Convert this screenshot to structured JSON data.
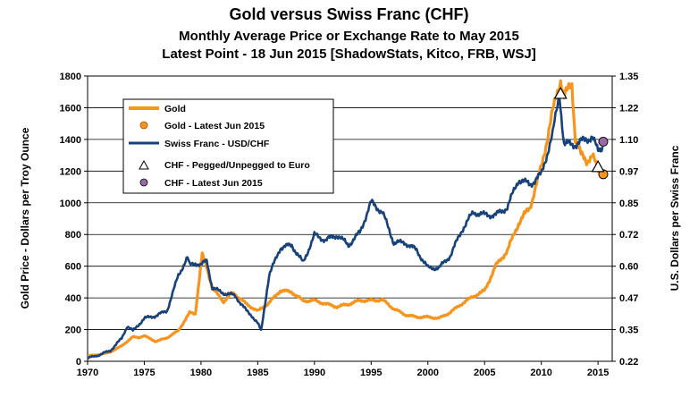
{
  "chart_data": {
    "type": "line",
    "title": "Gold versus Swiss Franc (CHF)",
    "subtitle": "Monthly Average Price or Exchange Rate to May 2015",
    "subtitle2": "Latest Point - 18 Jun 2015 [ShadowStats, Kitco, FRB, WSJ]",
    "xlabel": "",
    "ylabel_left": "Gold Price - Dollars per Troy Ounce",
    "ylabel_right": "U.S. Dollars per Swiss Franc",
    "xlim": [
      1970,
      2016.25
    ],
    "ylim_left": [
      0,
      1800
    ],
    "ylim_right": [
      0.22,
      1.35
    ],
    "x_ticks": [
      "1970",
      "1975",
      "1980",
      "1985",
      "1990",
      "1995",
      "2000",
      "2005",
      "2010",
      "2015"
    ],
    "y_left_ticks": [
      "0",
      "200",
      "400",
      "600",
      "800",
      "1000",
      "1200",
      "1400",
      "1600",
      "1800"
    ],
    "y_right_ticks": [
      "0.22",
      "0.35",
      "0.47",
      "0.60",
      "0.72",
      "0.85",
      "0.97",
      "1.10",
      "1.22",
      "1.35"
    ],
    "grid": "horizontal",
    "legend_position": "top-left",
    "series": [
      {
        "name": "Gold",
        "axis": "left",
        "color": "#F7941D",
        "points": [
          [
            1970,
            36
          ],
          [
            1971,
            41
          ],
          [
            1972,
            58
          ],
          [
            1973,
            97
          ],
          [
            1974,
            154
          ],
          [
            1974.5,
            150
          ],
          [
            1975,
            161
          ],
          [
            1976,
            125
          ],
          [
            1977,
            148
          ],
          [
            1978,
            193
          ],
          [
            1979,
            306
          ],
          [
            1979.5,
            300
          ],
          [
            1980,
            615
          ],
          [
            1980.1,
            670
          ],
          [
            1980.5,
            600
          ],
          [
            1981,
            460
          ],
          [
            1982,
            376
          ],
          [
            1982.7,
            430
          ],
          [
            1983,
            424
          ],
          [
            1984,
            361
          ],
          [
            1985,
            317
          ],
          [
            1986,
            368
          ],
          [
            1987,
            447
          ],
          [
            1988,
            437
          ],
          [
            1989,
            381
          ],
          [
            1990,
            384
          ],
          [
            1991,
            362
          ],
          [
            1992,
            344
          ],
          [
            1993,
            360
          ],
          [
            1994,
            384
          ],
          [
            1995,
            384
          ],
          [
            1996,
            388
          ],
          [
            1997,
            331
          ],
          [
            1998,
            294
          ],
          [
            1999,
            279
          ],
          [
            2000,
            279
          ],
          [
            2001,
            271
          ],
          [
            2002,
            310
          ],
          [
            2003,
            363
          ],
          [
            2004,
            409
          ],
          [
            2005,
            445
          ],
          [
            2006,
            604
          ],
          [
            2007,
            697
          ],
          [
            2008,
            872
          ],
          [
            2009,
            972
          ],
          [
            2010,
            1225
          ],
          [
            2011,
            1572
          ],
          [
            2011.7,
            1780
          ],
          [
            2012,
            1669
          ],
          [
            2012.7,
            1750
          ],
          [
            2013,
            1411
          ],
          [
            2013.5,
            1300
          ],
          [
            2014,
            1266
          ],
          [
            2014.5,
            1300
          ],
          [
            2015,
            1200
          ],
          [
            2015.4,
            1200
          ]
        ]
      },
      {
        "name": "Swiss Franc - USD/CHF",
        "axis": "right",
        "color": "#17427A",
        "points": [
          [
            1970,
            0.232
          ],
          [
            1971,
            0.245
          ],
          [
            1972,
            0.262
          ],
          [
            1973,
            0.31
          ],
          [
            1973.5,
            0.36
          ],
          [
            1974,
            0.34
          ],
          [
            1975,
            0.39
          ],
          [
            1976,
            0.4
          ],
          [
            1977,
            0.42
          ],
          [
            1978,
            0.56
          ],
          [
            1978.8,
            0.63
          ],
          [
            1979,
            0.6
          ],
          [
            1979.5,
            0.61
          ],
          [
            1980,
            0.6
          ],
          [
            1980.5,
            0.62
          ],
          [
            1981,
            0.51
          ],
          [
            1982,
            0.49
          ],
          [
            1983,
            0.48
          ],
          [
            1984,
            0.42
          ],
          [
            1984.5,
            0.4
          ],
          [
            1985,
            0.37
          ],
          [
            1985.3,
            0.34
          ],
          [
            1986,
            0.56
          ],
          [
            1987,
            0.67
          ],
          [
            1988,
            0.68
          ],
          [
            1989,
            0.61
          ],
          [
            1990,
            0.72
          ],
          [
            1991,
            0.7
          ],
          [
            1992,
            0.72
          ],
          [
            1993,
            0.68
          ],
          [
            1994,
            0.73
          ],
          [
            1995,
            0.85
          ],
          [
            1996,
            0.81
          ],
          [
            1997,
            0.69
          ],
          [
            1998,
            0.69
          ],
          [
            1999,
            0.66
          ],
          [
            2000,
            0.59
          ],
          [
            2001,
            0.59
          ],
          [
            2002,
            0.64
          ],
          [
            2003,
            0.74
          ],
          [
            2004,
            0.81
          ],
          [
            2005,
            0.8
          ],
          [
            2006,
            0.8
          ],
          [
            2007,
            0.83
          ],
          [
            2008,
            0.94
          ],
          [
            2009,
            0.92
          ],
          [
            2010,
            0.96
          ],
          [
            2011,
            1.12
          ],
          [
            2011.6,
            1.28
          ],
          [
            2012,
            1.08
          ],
          [
            2013,
            1.08
          ],
          [
            2014,
            1.1
          ],
          [
            2014.5,
            1.11
          ],
          [
            2015,
            1.05
          ],
          [
            2015.4,
            1.07
          ]
        ]
      },
      {
        "name": "Gold - Latest Jun 2015",
        "axis": "left",
        "color": "#F7941D",
        "marker": "circle",
        "points": [
          [
            2015.46,
            1180
          ]
        ]
      },
      {
        "name": "CHF - Pegged/Unpegged to Euro",
        "axis": "right",
        "color": "#FFFFFF",
        "marker": "triangle",
        "points": [
          [
            2011.7,
            1.28
          ],
          [
            2015.0,
            0.99
          ]
        ]
      },
      {
        "name": "CHF - Latest Jun 2015",
        "axis": "right",
        "color": "#9B69A8",
        "marker": "circle",
        "points": [
          [
            2015.46,
            1.09
          ]
        ]
      }
    ]
  }
}
